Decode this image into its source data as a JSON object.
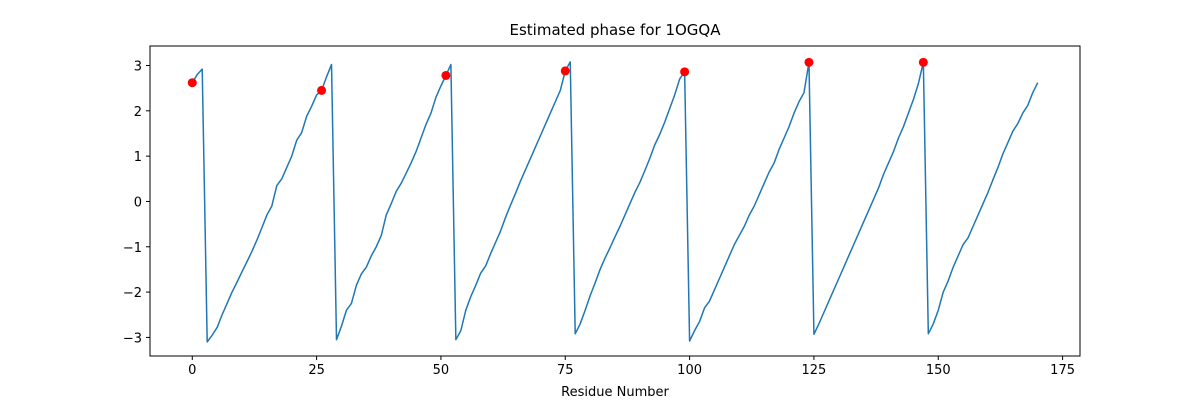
{
  "chart_data": {
    "type": "line",
    "title": "Estimated phase for 1OGQA",
    "xlabel": "Residue Number",
    "x": [
      0,
      1,
      2,
      3,
      4,
      5,
      6,
      7,
      8,
      9,
      10,
      11,
      12,
      13,
      14,
      15,
      16,
      17,
      18,
      19,
      20,
      21,
      22,
      23,
      24,
      25,
      26,
      27,
      28,
      29,
      30,
      31,
      32,
      33,
      34,
      35,
      36,
      37,
      38,
      39,
      40,
      41,
      42,
      43,
      44,
      45,
      46,
      47,
      48,
      49,
      50,
      51,
      52,
      53,
      54,
      55,
      56,
      57,
      58,
      59,
      60,
      61,
      62,
      63,
      64,
      65,
      66,
      67,
      68,
      69,
      70,
      71,
      72,
      73,
      74,
      75,
      76,
      77,
      78,
      79,
      80,
      81,
      82,
      83,
      84,
      85,
      86,
      87,
      88,
      89,
      90,
      91,
      92,
      93,
      94,
      95,
      96,
      97,
      98,
      99,
      100,
      101,
      102,
      103,
      104,
      105,
      106,
      107,
      108,
      109,
      110,
      111,
      112,
      113,
      114,
      115,
      116,
      117,
      118,
      119,
      120,
      121,
      122,
      123,
      124,
      125,
      126,
      127,
      128,
      129,
      130,
      131,
      132,
      133,
      134,
      135,
      136,
      137,
      138,
      139,
      140,
      141,
      142,
      143,
      144,
      145,
      146,
      147,
      148,
      149,
      150,
      151,
      152,
      153,
      154,
      155,
      156,
      157,
      158,
      159,
      160,
      161,
      162,
      163,
      164,
      165,
      166,
      167,
      168,
      169,
      170
    ],
    "series": [
      {
        "color": "#1f77b4",
        "values": [
          2.62,
          2.8,
          2.92,
          -3.1,
          -2.95,
          -2.78,
          -2.5,
          -2.25,
          -2.0,
          -1.78,
          -1.55,
          -1.33,
          -1.1,
          -0.85,
          -0.58,
          -0.3,
          -0.1,
          0.35,
          0.5,
          0.75,
          1.0,
          1.35,
          1.52,
          1.88,
          2.1,
          2.35,
          2.45,
          2.75,
          3.02,
          -3.05,
          -2.75,
          -2.4,
          -2.25,
          -1.85,
          -1.6,
          -1.45,
          -1.2,
          -1.0,
          -0.75,
          -0.3,
          -0.05,
          0.22,
          0.4,
          0.62,
          0.85,
          1.1,
          1.4,
          1.7,
          1.95,
          2.3,
          2.55,
          2.78,
          3.02,
          -3.05,
          -2.85,
          -2.4,
          -2.1,
          -1.85,
          -1.58,
          -1.42,
          -1.15,
          -0.9,
          -0.65,
          -0.35,
          -0.08,
          0.18,
          0.45,
          0.7,
          0.95,
          1.2,
          1.45,
          1.7,
          1.95,
          2.2,
          2.45,
          2.88,
          3.08,
          -2.92,
          -2.7,
          -2.4,
          -2.08,
          -1.8,
          -1.5,
          -1.25,
          -1.02,
          -0.78,
          -0.55,
          -0.3,
          -0.05,
          0.2,
          0.42,
          0.68,
          0.95,
          1.25,
          1.48,
          1.75,
          2.05,
          2.35,
          2.7,
          2.86,
          -3.08,
          -2.85,
          -2.65,
          -2.35,
          -2.2,
          -1.95,
          -1.7,
          -1.45,
          -1.2,
          -0.95,
          -0.75,
          -0.55,
          -0.3,
          -0.1,
          0.15,
          0.4,
          0.65,
          0.85,
          1.15,
          1.4,
          1.65,
          1.95,
          2.2,
          2.4,
          3.07,
          -2.93,
          -2.7,
          -2.45,
          -2.2,
          -1.95,
          -1.7,
          -1.45,
          -1.2,
          -0.95,
          -0.7,
          -0.45,
          -0.2,
          0.05,
          0.3,
          0.6,
          0.85,
          1.1,
          1.4,
          1.65,
          1.95,
          2.25,
          2.6,
          3.07,
          -2.92,
          -2.7,
          -2.4,
          -2.0,
          -1.75,
          -1.45,
          -1.2,
          -0.95,
          -0.8,
          -0.55,
          -0.3,
          -0.05,
          0.2,
          0.48,
          0.75,
          1.05,
          1.3,
          1.55,
          1.72,
          1.95,
          2.12,
          2.4,
          2.62
        ]
      },
      {
        "type": "scatter",
        "color": "#ff0000",
        "x": [
          0,
          26,
          51,
          75,
          99,
          124,
          147
        ],
        "values": [
          2.62,
          2.45,
          2.78,
          2.88,
          2.86,
          3.07,
          3.07
        ]
      }
    ],
    "xlim": [
      -8.5,
      178.5
    ],
    "ylim": [
      -3.41,
      3.43
    ],
    "xticks": [
      0,
      25,
      50,
      75,
      100,
      125,
      150,
      175
    ],
    "yticks": [
      {
        "value": -3,
        "label": "−3"
      },
      {
        "value": -2,
        "label": "−2"
      },
      {
        "value": -1,
        "label": "−1"
      },
      0,
      1,
      2,
      3
    ]
  }
}
